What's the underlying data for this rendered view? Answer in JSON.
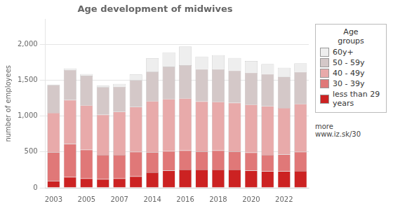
{
  "chart_data": {
    "type": "bar",
    "title": "Age development of midwives",
    "ylabel": "number of employees",
    "categories": [
      "2003",
      null,
      "2005",
      null,
      "2007",
      null,
      "2014",
      null,
      "2016",
      null,
      "2018",
      null,
      "2020",
      null,
      "2022",
      null
    ],
    "series": [
      {
        "name": "less than 29 years",
        "color": "#cc2222",
        "values": [
          95,
          150,
          130,
          120,
          130,
          160,
          215,
          240,
          255,
          255,
          255,
          255,
          240,
          230,
          230,
          235
        ]
      },
      {
        "name": "30 - 39y",
        "color": "#e07878",
        "values": [
          400,
          460,
          400,
          340,
          330,
          340,
          280,
          270,
          265,
          250,
          265,
          250,
          250,
          230,
          235,
          265
        ]
      },
      {
        "name": "40 - 49y",
        "color": "#e8aaaa",
        "values": [
          550,
          615,
          620,
          560,
          600,
          630,
          715,
          730,
          730,
          700,
          680,
          680,
          670,
          680,
          650,
          670
        ]
      },
      {
        "name": "50 - 59y",
        "color": "#d4c8c8",
        "values": [
          390,
          420,
          415,
          385,
          350,
          370,
          410,
          450,
          460,
          450,
          455,
          450,
          445,
          445,
          435,
          445
        ]
      },
      {
        "name": "60y+",
        "color": "#eeeeee",
        "values": [
          5,
          20,
          20,
          20,
          40,
          80,
          185,
          200,
          260,
          175,
          195,
          175,
          165,
          140,
          125,
          120
        ]
      }
    ],
    "stacked": true,
    "ylim": [
      0,
      2350
    ],
    "yticks": [
      0,
      500,
      1000,
      1500,
      2000
    ],
    "grid": "y",
    "legend": "right",
    "legend_title": "Age\ngroups",
    "annotation": "more\nwww.iz.sk/30"
  }
}
